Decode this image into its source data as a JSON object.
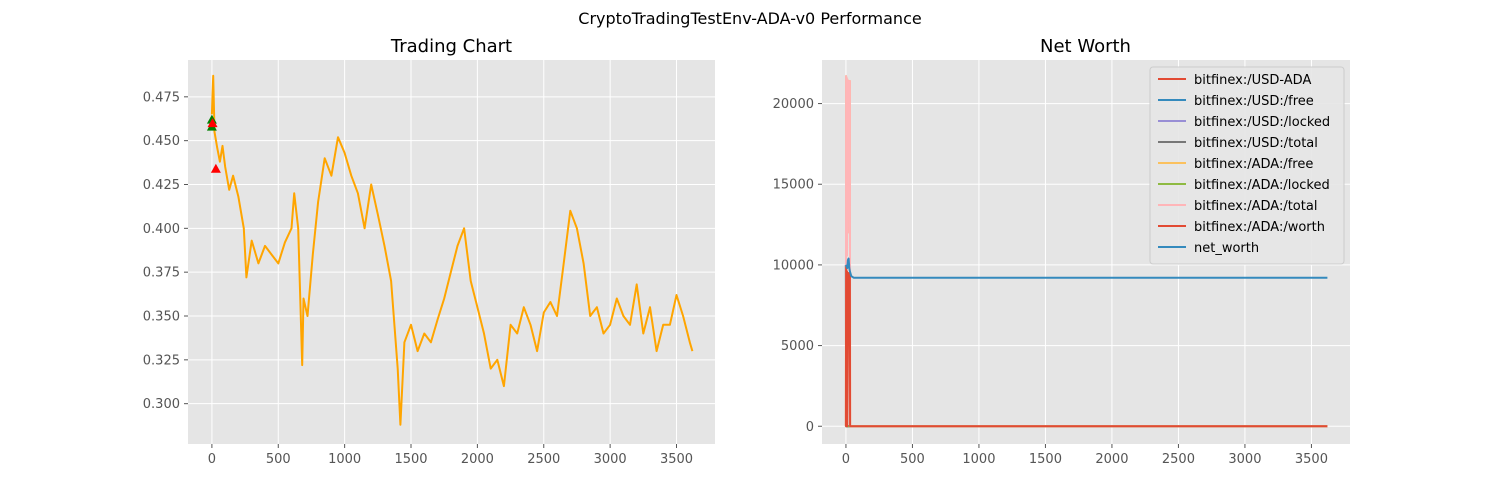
{
  "figure": {
    "suptitle": "CryptoTradingTestEnv-ADA-v0 Performance"
  },
  "chart_data": [
    {
      "type": "line",
      "title": "Trading Chart",
      "xlabel": "",
      "ylabel": "",
      "xlim": [
        -180,
        3790
      ],
      "ylim": [
        0.277,
        0.496
      ],
      "xticks": [
        0,
        500,
        1000,
        1500,
        2000,
        2500,
        3000,
        3500
      ],
      "yticks": [
        0.3,
        0.325,
        0.35,
        0.375,
        0.4,
        0.425,
        0.45,
        0.475
      ],
      "ytick_labels": [
        "0.300",
        "0.325",
        "0.350",
        "0.375",
        "0.400",
        "0.425",
        "0.450",
        "0.475"
      ],
      "grid": true,
      "series": [
        {
          "name": "price",
          "color": "#ffa500",
          "x": [
            0,
            10,
            20,
            40,
            60,
            80,
            100,
            130,
            160,
            200,
            240,
            260,
            300,
            350,
            400,
            450,
            500,
            550,
            600,
            620,
            650,
            680,
            690,
            720,
            760,
            800,
            850,
            900,
            950,
            1000,
            1050,
            1100,
            1150,
            1200,
            1250,
            1300,
            1350,
            1400,
            1420,
            1450,
            1500,
            1550,
            1600,
            1650,
            1700,
            1750,
            1800,
            1850,
            1900,
            1950,
            2000,
            2050,
            2100,
            2150,
            2200,
            2250,
            2300,
            2350,
            2400,
            2450,
            2500,
            2550,
            2600,
            2650,
            2700,
            2750,
            2800,
            2850,
            2900,
            2950,
            3000,
            3050,
            3100,
            3150,
            3200,
            3250,
            3300,
            3350,
            3400,
            3450,
            3500,
            3550,
            3600,
            3620
          ],
          "y": [
            0.465,
            0.487,
            0.455,
            0.446,
            0.438,
            0.447,
            0.435,
            0.422,
            0.43,
            0.418,
            0.4,
            0.372,
            0.393,
            0.38,
            0.39,
            0.385,
            0.38,
            0.392,
            0.4,
            0.42,
            0.4,
            0.322,
            0.36,
            0.35,
            0.385,
            0.415,
            0.44,
            0.43,
            0.452,
            0.443,
            0.43,
            0.42,
            0.4,
            0.425,
            0.408,
            0.39,
            0.37,
            0.32,
            0.288,
            0.335,
            0.345,
            0.33,
            0.34,
            0.335,
            0.348,
            0.36,
            0.375,
            0.39,
            0.4,
            0.37,
            0.355,
            0.34,
            0.32,
            0.325,
            0.31,
            0.345,
            0.34,
            0.355,
            0.345,
            0.33,
            0.352,
            0.358,
            0.35,
            0.38,
            0.41,
            0.4,
            0.38,
            0.35,
            0.355,
            0.34,
            0.345,
            0.36,
            0.35,
            0.345,
            0.368,
            0.34,
            0.355,
            0.33,
            0.345,
            0.345,
            0.362,
            0.35,
            0.335,
            0.33
          ]
        }
      ],
      "markers": [
        {
          "kind": "buy",
          "color": "#008000",
          "x": 0,
          "y": 0.462
        },
        {
          "kind": "buy",
          "color": "#008000",
          "x": 0,
          "y": 0.458
        },
        {
          "kind": "sell",
          "color": "#ff0000",
          "x": 5,
          "y": 0.46
        },
        {
          "kind": "sell",
          "color": "#ff0000",
          "x": 30,
          "y": 0.434
        }
      ]
    },
    {
      "type": "line",
      "title": "Net Worth",
      "xlabel": "",
      "ylabel": "",
      "xlim": [
        -180,
        3790
      ],
      "ylim": [
        -1100,
        22700
      ],
      "xticks": [
        0,
        500,
        1000,
        1500,
        2000,
        2500,
        3000,
        3500
      ],
      "yticks": [
        0,
        5000,
        10000,
        15000,
        20000
      ],
      "grid": true,
      "legend_position": "top-right",
      "series": [
        {
          "name": "bitfinex:/USD-ADA",
          "color": "#e24a33",
          "x": [
            0,
            3620
          ],
          "y": [
            0.46,
            0.33
          ]
        },
        {
          "name": "bitfinex:/USD:/free",
          "color": "#348abd",
          "x": [
            0,
            1,
            2,
            3620
          ],
          "y": [
            10000,
            0,
            0,
            0
          ]
        },
        {
          "name": "bitfinex:/USD:/locked",
          "color": "#988ed5",
          "x": [
            0,
            3620
          ],
          "y": [
            0,
            0
          ]
        },
        {
          "name": "bitfinex:/USD:/total",
          "color": "#777777",
          "x": [
            0,
            1,
            2,
            3620
          ],
          "y": [
            10000,
            0,
            0,
            0
          ]
        },
        {
          "name": "bitfinex:/ADA:/free",
          "color": "#fbc15e",
          "x": [
            0,
            1,
            2,
            3,
            4,
            5,
            6,
            7,
            8,
            10,
            15,
            20,
            25,
            30,
            31,
            33,
            3620
          ],
          "y": [
            0,
            21700,
            10500,
            21600,
            10800,
            21600,
            11200,
            21500,
            10600,
            21500,
            12000,
            21400,
            13000,
            21400,
            0,
            0,
            0
          ]
        },
        {
          "name": "bitfinex:/ADA:/locked",
          "color": "#8eba42",
          "x": [
            0,
            3620
          ],
          "y": [
            0,
            0
          ]
        },
        {
          "name": "bitfinex:/ADA:/total",
          "color": "#ffb5b8",
          "x": [
            0,
            1,
            2,
            3,
            4,
            5,
            6,
            7,
            8,
            10,
            15,
            20,
            25,
            30,
            31,
            33,
            3620
          ],
          "y": [
            0,
            21700,
            10500,
            21600,
            10800,
            21600,
            11200,
            21500,
            10600,
            21500,
            12000,
            21400,
            13000,
            21400,
            0,
            0,
            0
          ]
        },
        {
          "name": "bitfinex:/ADA:/worth",
          "color": "#e24a33",
          "x": [
            0,
            1,
            2,
            3,
            4,
            8,
            10,
            20,
            30,
            31,
            33,
            3620
          ],
          "y": [
            0,
            9900,
            0,
            9800,
            0,
            9600,
            0,
            9500,
            9400,
            0,
            0,
            0
          ]
        },
        {
          "name": "net_worth",
          "color": "#348abd",
          "x": [
            0,
            5,
            10,
            15,
            20,
            25,
            30,
            40,
            60,
            100,
            3620
          ],
          "y": [
            10000,
            9900,
            9800,
            10300,
            10400,
            9800,
            9600,
            9300,
            9200,
            9200,
            9200
          ]
        }
      ]
    }
  ]
}
